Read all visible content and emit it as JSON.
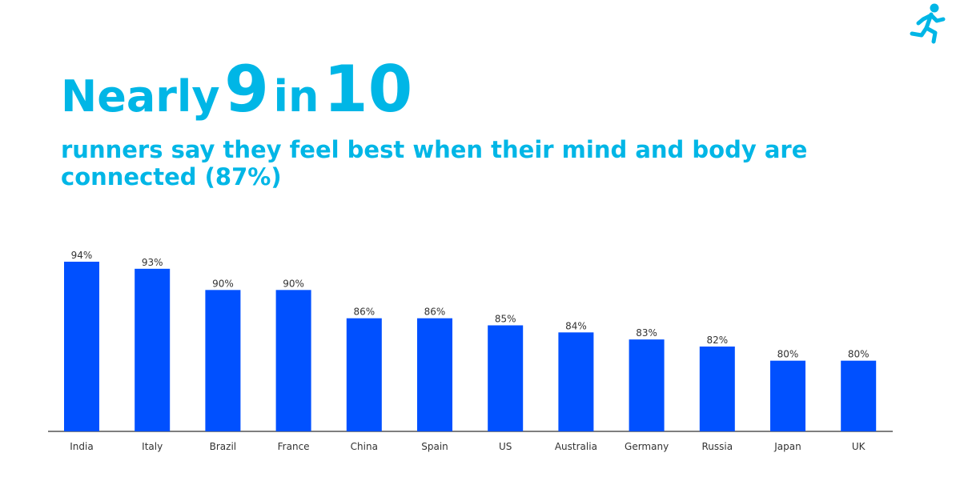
{
  "colors": {
    "accent": "#00b6e6",
    "bar": "#0050ff",
    "axis": "#555555",
    "label": "#333333"
  },
  "icon": "runner-icon",
  "headline": {
    "prefix": "Nearly",
    "number1": "9",
    "middle": "in",
    "number2": "10"
  },
  "subtitle": "runners say they feel best when their mind and body are connected (87%)",
  "chart_data": {
    "type": "bar",
    "title": "",
    "xlabel": "",
    "ylabel": "",
    "ylim": [
      0,
      100
    ],
    "grid": false,
    "categories": [
      "India",
      "Italy",
      "Brazil",
      "France",
      "China",
      "Spain",
      "US",
      "Australia",
      "Germany",
      "Russia",
      "Japan",
      "UK"
    ],
    "values": [
      94,
      93,
      90,
      90,
      86,
      86,
      85,
      84,
      83,
      82,
      80,
      80
    ],
    "value_labels": [
      "94%",
      "93%",
      "90%",
      "90%",
      "86%",
      "86%",
      "85%",
      "84%",
      "83%",
      "82%",
      "80%",
      "80%"
    ]
  }
}
